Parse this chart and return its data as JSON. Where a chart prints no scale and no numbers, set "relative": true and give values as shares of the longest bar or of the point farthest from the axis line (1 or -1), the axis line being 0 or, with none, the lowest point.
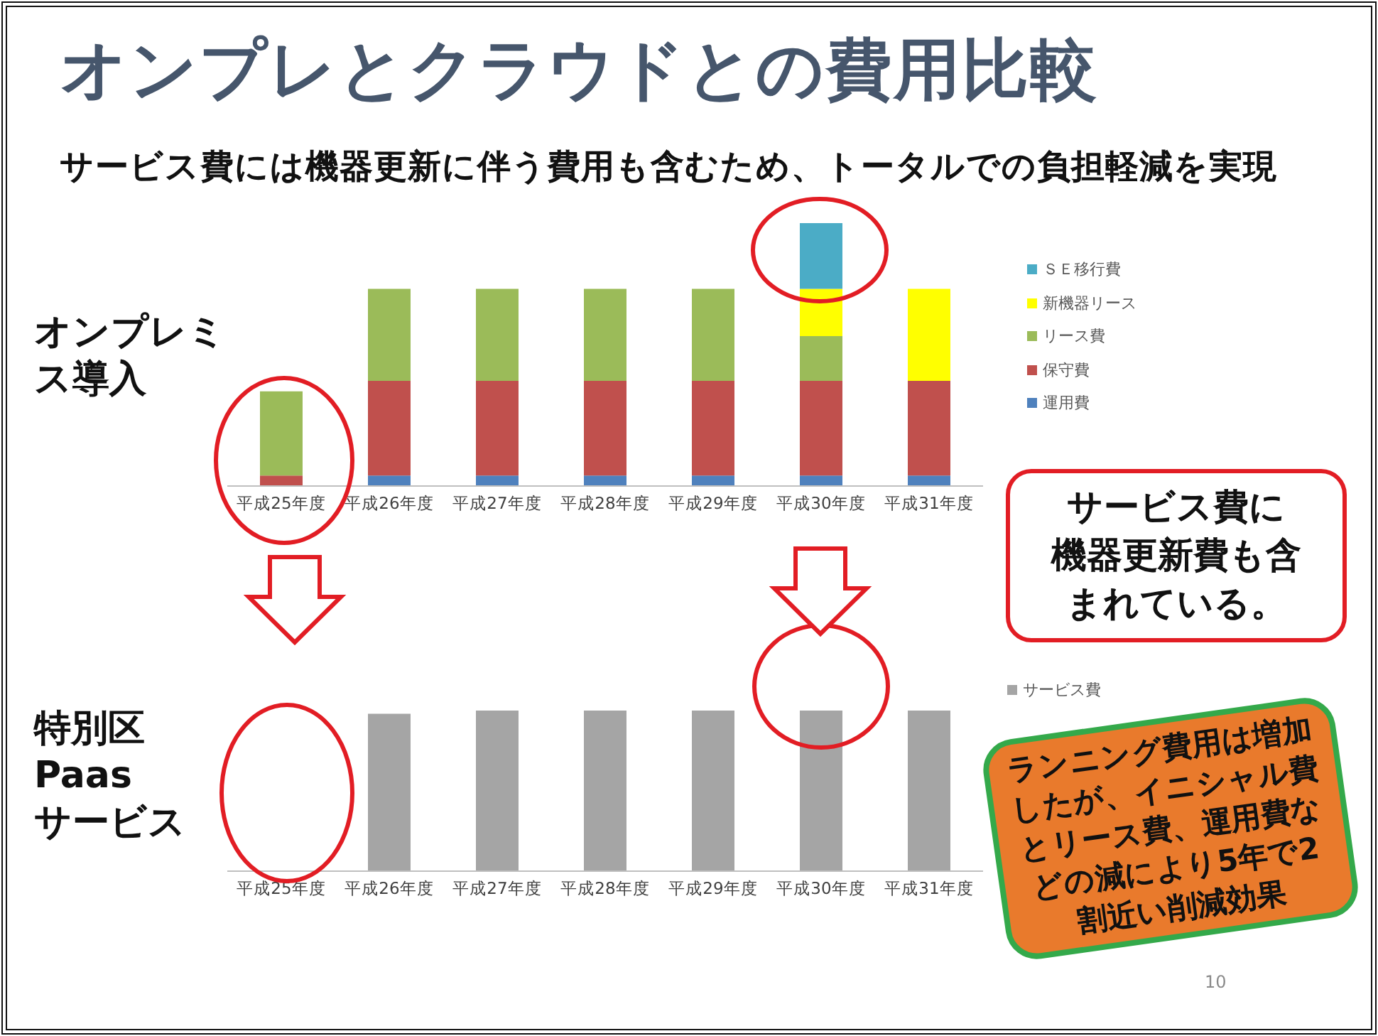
{
  "chart_data": [
    {
      "type": "bar",
      "stacked": true,
      "relative": true,
      "title": "オンプレとクラウドとの費用比較",
      "subtitle": "サービス費には機器更新に伴う費用も含むため、トータルでの負担軽減を実現",
      "ylabel": "オンプレミス導入",
      "categories": [
        "平成25年度",
        "平成26年度",
        "平成27年度",
        "平成28年度",
        "平成29年度",
        "平成30年度",
        "平成31年度"
      ],
      "series": [
        {
          "name": "運用費",
          "color": "#4f81bd",
          "values": [
            null,
            0.04,
            0.04,
            0.04,
            0.04,
            0.04,
            0.04
          ]
        },
        {
          "name": "保守費",
          "color": "#c0504d",
          "values": [
            0.04,
            0.36,
            0.36,
            0.36,
            0.36,
            0.36,
            0.36
          ]
        },
        {
          "name": "リース費",
          "color": "#9bbb59",
          "values": [
            0.32,
            0.35,
            0.35,
            0.35,
            0.35,
            0.17,
            null
          ]
        },
        {
          "name": "新機器リース",
          "color": "#ffff00",
          "values": [
            null,
            null,
            null,
            null,
            null,
            0.18,
            0.35
          ]
        },
        {
          "name": "ＳＥ移行費",
          "color": "#4bacc6",
          "values": [
            null,
            null,
            null,
            null,
            null,
            0.25,
            null
          ]
        }
      ],
      "legend": "right",
      "annotations": [
        "サービス費に機器更新費も含まれている。"
      ]
    },
    {
      "type": "bar",
      "relative": true,
      "ylabel": "特別区\nPaas\nサービス",
      "categories": [
        "平成25年度",
        "平成26年度",
        "平成27年度",
        "平成28年度",
        "平成29年度",
        "平成30年度",
        "平成31年度"
      ],
      "series": [
        {
          "name": "サービス費",
          "color": "#a5a5a5",
          "values": [
            null,
            0.98,
            1,
            1,
            1,
            1,
            1
          ]
        }
      ],
      "legend": "top right",
      "annotations": [
        "ランニング費用は増加したが、イニシャル費とリース費、運用費などの減により5年で2割近い削減効果",
        "10"
      ]
    }
  ]
}
